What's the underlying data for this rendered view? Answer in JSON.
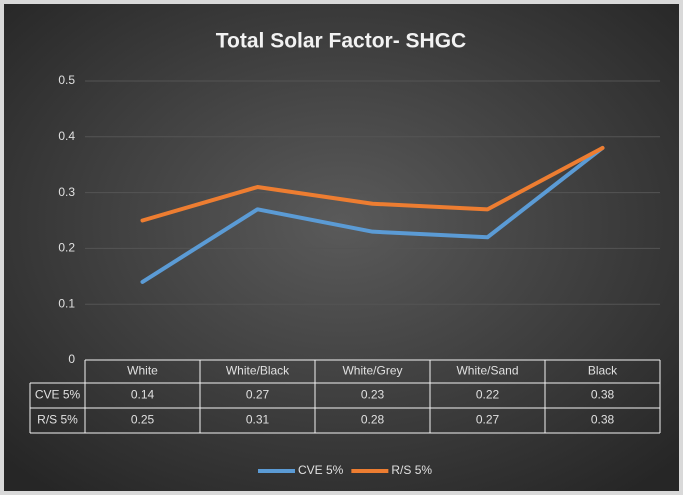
{
  "chart_data": {
    "type": "line",
    "title": "Total Solar Factor- SHGC",
    "categories": [
      "White",
      "White/Black",
      "White/Grey",
      "White/Sand",
      "Black"
    ],
    "series": [
      {
        "name": "CVE 5%",
        "color": "#5b9bd5",
        "values": [
          0.14,
          0.27,
          0.23,
          0.22,
          0.38
        ]
      },
      {
        "name": "R/S 5%",
        "color": "#ed7d31",
        "values": [
          0.25,
          0.31,
          0.28,
          0.27,
          0.38
        ]
      }
    ],
    "ylim": [
      0,
      0.5
    ],
    "yticks": [
      0,
      0.1,
      0.2,
      0.3,
      0.4,
      0.5
    ],
    "grid": true,
    "legend": "bottom",
    "data_table": true
  }
}
